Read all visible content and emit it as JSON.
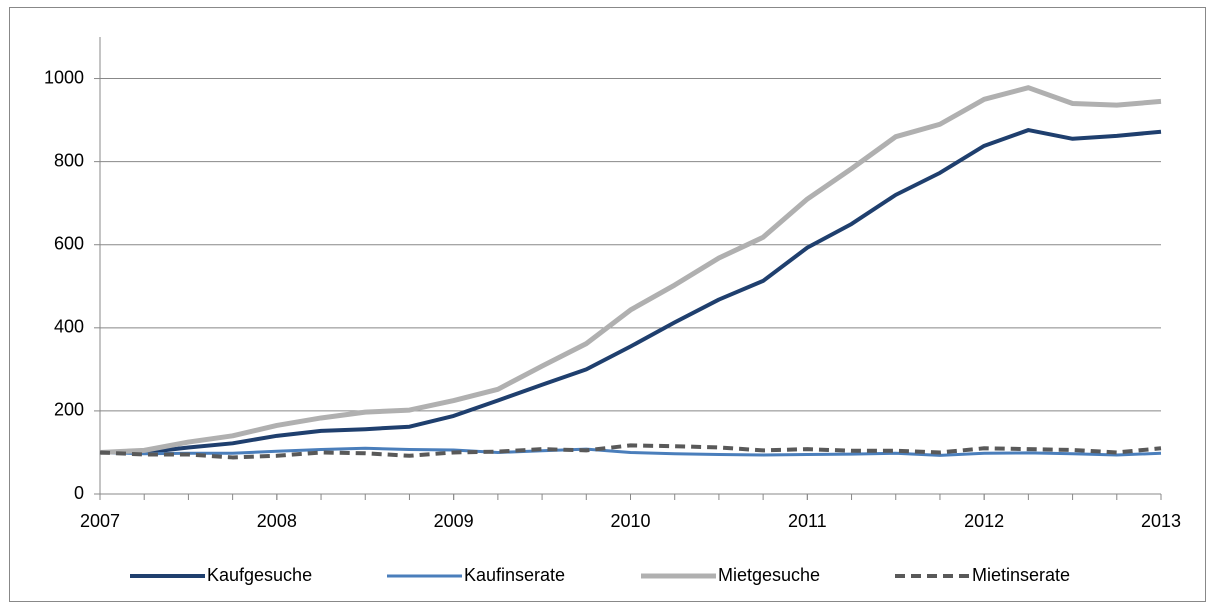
{
  "chart_data": {
    "type": "line",
    "x": [
      2007,
      2007.25,
      2007.5,
      2007.75,
      2008,
      2008.25,
      2008.5,
      2008.75,
      2009,
      2009.25,
      2009.5,
      2009.75,
      2010,
      2010.25,
      2010.5,
      2010.75,
      2011,
      2011.25,
      2011.5,
      2011.75,
      2012,
      2012.25,
      2012.5,
      2012.75,
      2013
    ],
    "xlim": [
      2007,
      2013
    ],
    "xticks": [
      2007,
      2008,
      2009,
      2010,
      2011,
      2012,
      2013
    ],
    "ylim": [
      0,
      1100
    ],
    "yticks": [
      0,
      200,
      400,
      600,
      800,
      1000
    ],
    "grid": true,
    "legend": "bottom",
    "series": [
      {
        "name": "Kaufgesuche",
        "color": "#1f3f6e",
        "width": 4,
        "dashed": false,
        "values": [
          100,
          100,
          112,
          122,
          140,
          152,
          156,
          162,
          188,
          225,
          263,
          300,
          355,
          413,
          468,
          513,
          593,
          650,
          720,
          773,
          838,
          876,
          855,
          862,
          872
        ]
      },
      {
        "name": "Kaufinserate",
        "color": "#4a7ebb",
        "width": 3,
        "dashed": false,
        "values": [
          100,
          97,
          98,
          98,
          103,
          107,
          110,
          107,
          106,
          100,
          104,
          108,
          100,
          97,
          95,
          94,
          95,
          96,
          98,
          93,
          98,
          99,
          97,
          94,
          98
        ]
      },
      {
        "name": "Mietgesuche",
        "color": "#b0b0b0",
        "width": 5,
        "dashed": false,
        "values": [
          100,
          105,
          125,
          140,
          165,
          183,
          197,
          202,
          225,
          252,
          308,
          362,
          443,
          503,
          568,
          618,
          710,
          783,
          860,
          890,
          950,
          978,
          940,
          936,
          945
        ]
      },
      {
        "name": "Mietinserate",
        "color": "#595959",
        "width": 4,
        "dashed": true,
        "values": [
          100,
          95,
          95,
          88,
          92,
          100,
          98,
          92,
          100,
          102,
          108,
          105,
          117,
          115,
          112,
          105,
          108,
          104,
          104,
          100,
          110,
          108,
          106,
          100,
          110
        ]
      }
    ]
  }
}
